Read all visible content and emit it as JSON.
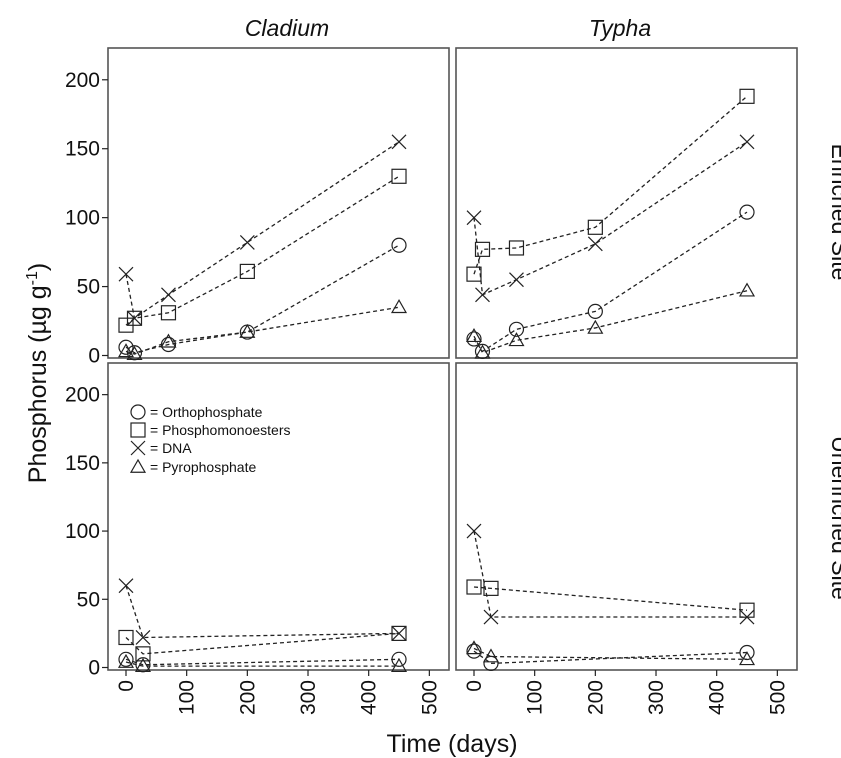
{
  "chart_data": {
    "type": "line",
    "xlabel": "Time (days)",
    "ylabel_main": "Phosphorus (µg g",
    "ylabel_sup": "-1",
    "ylabel_close": ")",
    "columns": [
      "Cladium",
      "Typha"
    ],
    "rows": [
      "Enriched Site",
      "Unenriched Site"
    ],
    "xlim": [
      -15,
      500
    ],
    "ylim": [
      0,
      220
    ],
    "xticks": [
      0,
      100,
      200,
      300,
      400,
      500
    ],
    "yticks": [
      0,
      50,
      100,
      150,
      200
    ],
    "grid": false,
    "legend": {
      "placement": "top-left of bottom-left panel",
      "entries": [
        {
          "marker": "circle",
          "label": "= Orthophosphate"
        },
        {
          "marker": "square",
          "label": "= Phosphomonoesters"
        },
        {
          "marker": "cross",
          "label": "= DNA"
        },
        {
          "marker": "triangle",
          "label": "= Pyrophosphate"
        }
      ]
    },
    "panels": [
      {
        "column": "Cladium",
        "row": "Enriched Site",
        "series": [
          {
            "marker": "circle",
            "x": [
              0,
              14,
              70,
              200,
              450
            ],
            "y": [
              6,
              2,
              8,
              17,
              80
            ]
          },
          {
            "marker": "square",
            "x": [
              0,
              14,
              70,
              200,
              450
            ],
            "y": [
              22,
              27,
              31,
              61,
              130
            ]
          },
          {
            "marker": "cross",
            "x": [
              0,
              14,
              70,
              200,
              450
            ],
            "y": [
              59,
              27,
              44,
              82,
              155
            ]
          },
          {
            "marker": "triangle",
            "x": [
              0,
              14,
              70,
              200,
              450
            ],
            "y": [
              3,
              1,
              10,
              17,
              35
            ]
          }
        ]
      },
      {
        "column": "Typha",
        "row": "Enriched Site",
        "series": [
          {
            "marker": "circle",
            "x": [
              0,
              14,
              70,
              200,
              450
            ],
            "y": [
              12,
              3,
              19,
              32,
              104
            ]
          },
          {
            "marker": "square",
            "x": [
              0,
              14,
              70,
              200,
              450
            ],
            "y": [
              59,
              77,
              78,
              93,
              188
            ]
          },
          {
            "marker": "cross",
            "x": [
              0,
              14,
              70,
              200,
              450
            ],
            "y": [
              100,
              44,
              55,
              81,
              155
            ]
          },
          {
            "marker": "triangle",
            "x": [
              0,
              14,
              70,
              200,
              450
            ],
            "y": [
              14,
              2,
              11,
              20,
              47
            ]
          }
        ]
      },
      {
        "column": "Cladium",
        "row": "Unenriched Site",
        "series": [
          {
            "marker": "circle",
            "x": [
              0,
              28,
              450
            ],
            "y": [
              6,
              2,
              6
            ]
          },
          {
            "marker": "square",
            "x": [
              0,
              28,
              450
            ],
            "y": [
              22,
              10,
              25
            ]
          },
          {
            "marker": "cross",
            "x": [
              0,
              28,
              450
            ],
            "y": [
              60,
              22,
              25
            ]
          },
          {
            "marker": "triangle",
            "x": [
              0,
              28,
              450
            ],
            "y": [
              4,
              1,
              1
            ]
          }
        ]
      },
      {
        "column": "Typha",
        "row": "Unenriched Site",
        "series": [
          {
            "marker": "circle",
            "x": [
              0,
              28,
              450
            ],
            "y": [
              12,
              3,
              11
            ]
          },
          {
            "marker": "square",
            "x": [
              0,
              28,
              450
            ],
            "y": [
              59,
              58,
              42
            ]
          },
          {
            "marker": "cross",
            "x": [
              0,
              28,
              450
            ],
            "y": [
              100,
              37,
              37
            ]
          },
          {
            "marker": "triangle",
            "x": [
              0,
              28,
              450
            ],
            "y": [
              14,
              8,
              6
            ]
          }
        ]
      }
    ]
  }
}
